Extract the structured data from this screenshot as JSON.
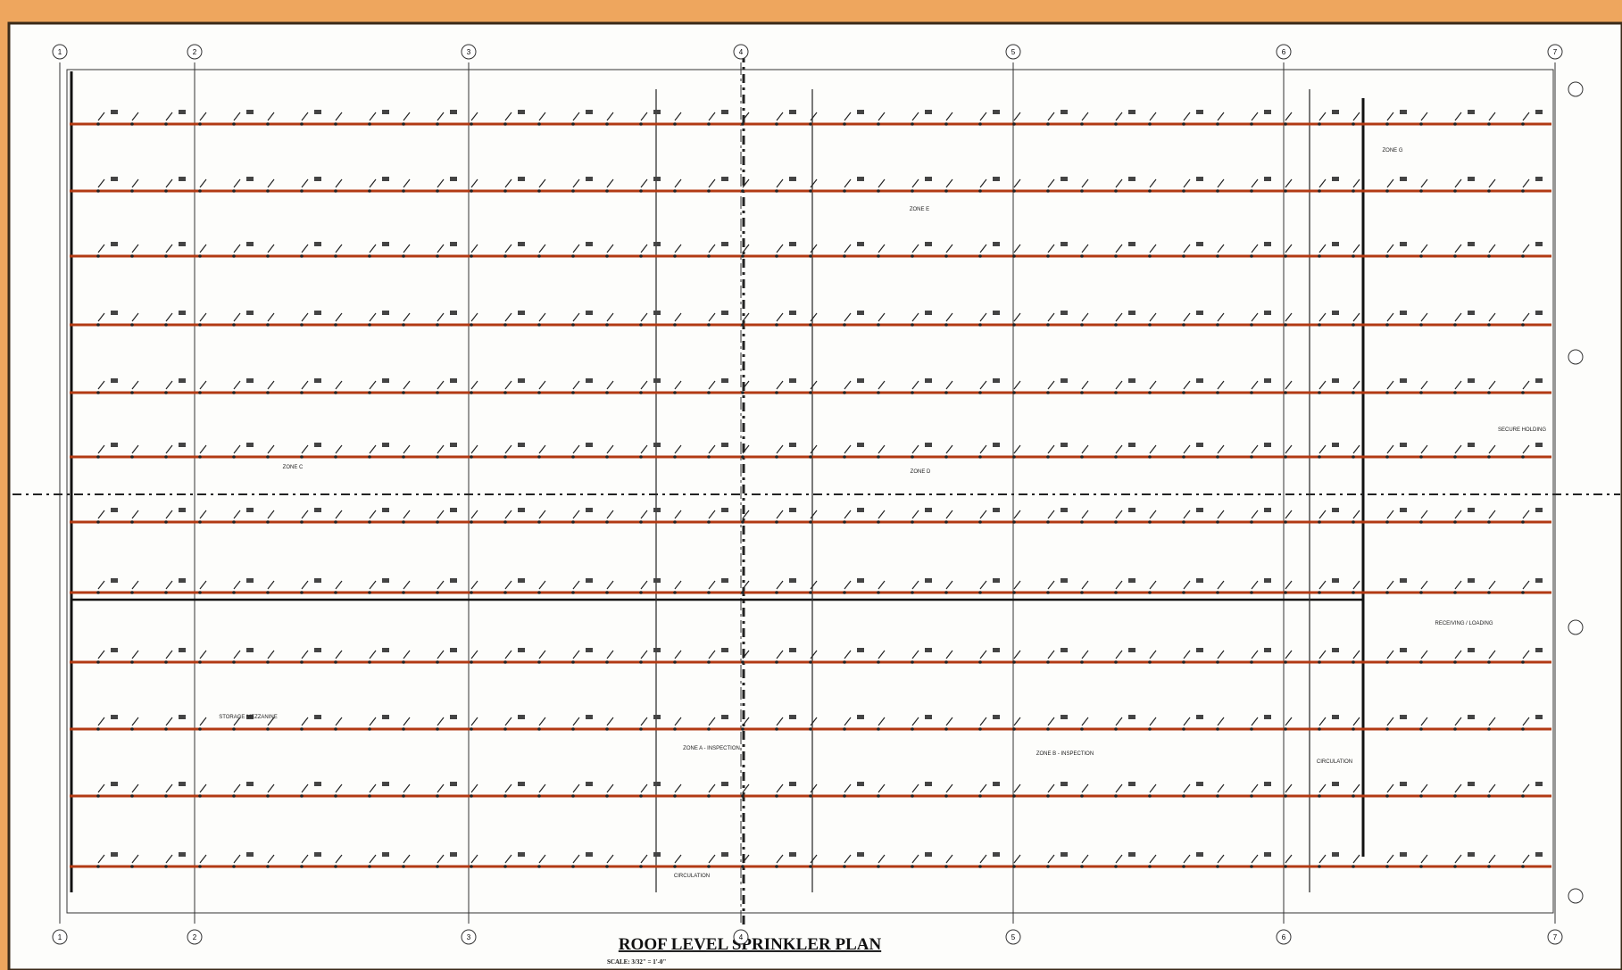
{
  "drawing": {
    "title": "ROOF LEVEL SPRINKLER PLAN",
    "scale": "SCALE: 3/32\" = 1'-0\"",
    "grid_columns": [
      "1",
      "2",
      "3",
      "4",
      "5",
      "6",
      "7"
    ],
    "zones": [
      "ZONE E",
      "ZONE G",
      "ZONE C",
      "ZONE D",
      "SECURE HOLDING",
      "RECEIVING / LOADING",
      "STORAGE MEZZANINE",
      "ZONE A - INSPECTION",
      "ZONE B - INSPECTION",
      "CIRCULATION",
      "CIRCULATION"
    ]
  }
}
